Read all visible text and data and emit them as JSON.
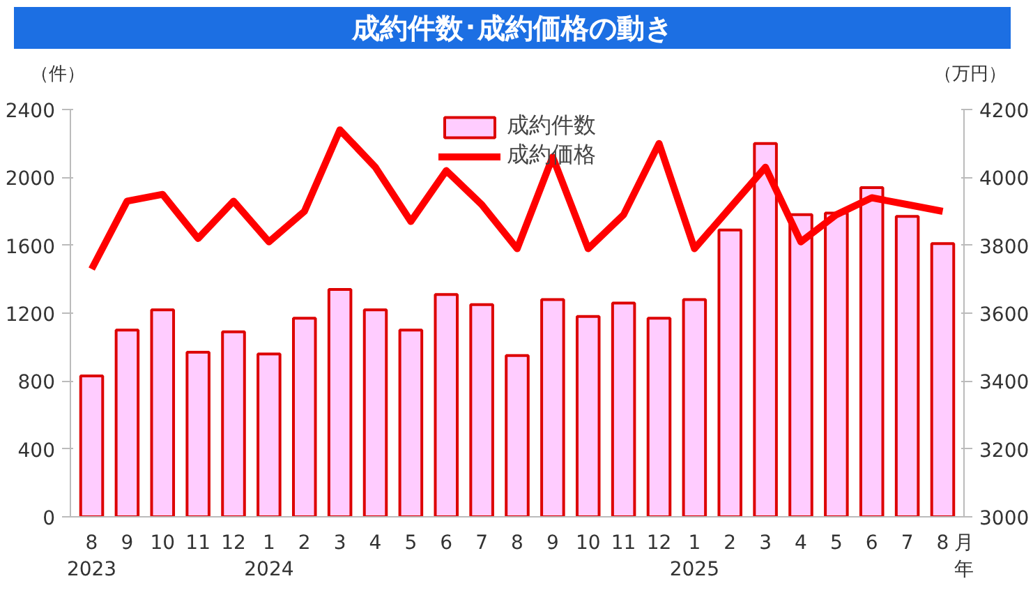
{
  "chart_data": {
    "type": "bar",
    "title": "成約件数･成約価格の動き",
    "ylabel": "（件）",
    "y2label": "（万円）",
    "xlabel": "月年",
    "categories": [
      "8\n2023",
      "9",
      "10",
      "11",
      "12",
      "1\n2024",
      "2",
      "3",
      "4",
      "5",
      "6",
      "7",
      "8",
      "9",
      "10",
      "11",
      "12",
      "1\n2025",
      "2",
      "3",
      "4",
      "5",
      "6",
      "7",
      "8"
    ],
    "series": [
      {
        "name": "成約件数",
        "color": "#ffccff",
        "values": [
          830,
          1100,
          1220,
          970,
          1090,
          960,
          1170,
          1340,
          1220,
          1100,
          1310,
          1250,
          950,
          1280,
          1180,
          1260,
          1170,
          1280,
          1690,
          2200,
          1780,
          1790,
          1940,
          1770,
          1610
        ]
      },
      {
        "name": "成約価格",
        "type": "line",
        "axis": "y2",
        "color": "#ff0000",
        "values": [
          3730,
          3930,
          3950,
          3820,
          3930,
          3810,
          3900,
          4140,
          4030,
          3870,
          4020,
          3920,
          3790,
          4060,
          3790,
          3890,
          4100,
          3790,
          3910,
          4030,
          3810,
          3890,
          3940,
          3920,
          3900
        ]
      }
    ],
    "ylim": [
      0,
      2400
    ],
    "yticks": [
      0,
      400,
      800,
      1200,
      1600,
      2000,
      2400
    ],
    "y2lim": [
      3000,
      4200
    ],
    "y2ticks": [
      3000,
      3200,
      3400,
      3600,
      3800,
      4000,
      4200
    ],
    "grid": false,
    "legend": "top",
    "marker": "none",
    "line_style": "solid"
  }
}
